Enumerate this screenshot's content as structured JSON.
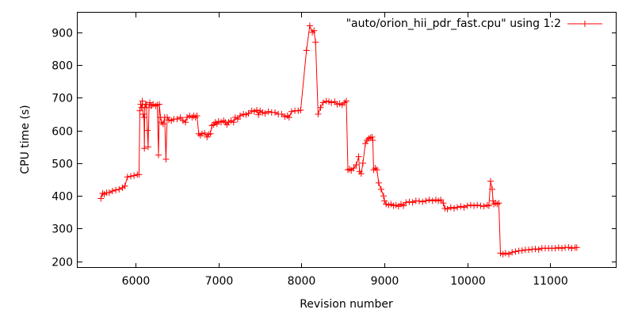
{
  "chart_data": {
    "type": "line",
    "title": "",
    "xlabel": "Revision number",
    "ylabel": "CPU time (s)",
    "xlim": [
      5300,
      11800
    ],
    "ylim": [
      180,
      960
    ],
    "xticks": [
      6000,
      7000,
      8000,
      9000,
      10000,
      11000
    ],
    "yticks": [
      200,
      300,
      400,
      500,
      600,
      700,
      800,
      900
    ],
    "grid": false,
    "legend_position": "top-right",
    "series_color": "#ff0000",
    "marker": "plus",
    "series": [
      {
        "name": "\"auto/orion_hii_pdr_fast.cpu\" using 1:2",
        "points": [
          [
            5580,
            392
          ],
          [
            5600,
            408
          ],
          [
            5620,
            405
          ],
          [
            5650,
            410
          ],
          [
            5680,
            410
          ],
          [
            5720,
            415
          ],
          [
            5760,
            418
          ],
          [
            5800,
            420
          ],
          [
            5840,
            425
          ],
          [
            5870,
            430
          ],
          [
            5900,
            458
          ],
          [
            5940,
            460
          ],
          [
            5980,
            462
          ],
          [
            6020,
            465
          ],
          [
            6040,
            465
          ],
          [
            6050,
            660
          ],
          [
            6060,
            680
          ],
          [
            6070,
            670
          ],
          [
            6080,
            690
          ],
          [
            6090,
            650
          ],
          [
            6100,
            640
          ],
          [
            6105,
            545
          ],
          [
            6110,
            670
          ],
          [
            6120,
            680
          ],
          [
            6130,
            680
          ],
          [
            6140,
            600
          ],
          [
            6150,
            550
          ],
          [
            6160,
            670
          ],
          [
            6170,
            685
          ],
          [
            6190,
            675
          ],
          [
            6210,
            680
          ],
          [
            6240,
            675
          ],
          [
            6260,
            678
          ],
          [
            6275,
            525
          ],
          [
            6285,
            680
          ],
          [
            6300,
            640
          ],
          [
            6310,
            625
          ],
          [
            6330,
            620
          ],
          [
            6350,
            640
          ],
          [
            6365,
            512
          ],
          [
            6380,
            640
          ],
          [
            6400,
            632
          ],
          [
            6430,
            630
          ],
          [
            6460,
            635
          ],
          [
            6500,
            635
          ],
          [
            6540,
            640
          ],
          [
            6570,
            630
          ],
          [
            6600,
            625
          ],
          [
            6620,
            640
          ],
          [
            6650,
            645
          ],
          [
            6680,
            640
          ],
          [
            6700,
            645
          ],
          [
            6720,
            640
          ],
          [
            6740,
            645
          ],
          [
            6760,
            590
          ],
          [
            6780,
            585
          ],
          [
            6800,
            590
          ],
          [
            6830,
            592
          ],
          [
            6860,
            580
          ],
          [
            6880,
            588
          ],
          [
            6900,
            590
          ],
          [
            6920,
            615
          ],
          [
            6940,
            618
          ],
          [
            6960,
            625
          ],
          [
            6980,
            620
          ],
          [
            7000,
            628
          ],
          [
            7030,
            625
          ],
          [
            7060,
            630
          ],
          [
            7080,
            625
          ],
          [
            7100,
            618
          ],
          [
            7120,
            625
          ],
          [
            7150,
            630
          ],
          [
            7180,
            625
          ],
          [
            7200,
            640
          ],
          [
            7230,
            635
          ],
          [
            7260,
            645
          ],
          [
            7300,
            650
          ],
          [
            7330,
            648
          ],
          [
            7360,
            652
          ],
          [
            7400,
            660
          ],
          [
            7430,
            658
          ],
          [
            7460,
            662
          ],
          [
            7480,
            648
          ],
          [
            7500,
            660
          ],
          [
            7530,
            655
          ],
          [
            7560,
            652
          ],
          [
            7600,
            658
          ],
          [
            7640,
            655
          ],
          [
            7680,
            655
          ],
          [
            7720,
            650
          ],
          [
            7760,
            650
          ],
          [
            7800,
            642
          ],
          [
            7830,
            645
          ],
          [
            7850,
            640
          ],
          [
            7880,
            658
          ],
          [
            7920,
            660
          ],
          [
            7960,
            660
          ],
          [
            7990,
            662
          ],
          [
            8060,
            845
          ],
          [
            8100,
            920
          ],
          [
            8130,
            900
          ],
          [
            8150,
            905
          ],
          [
            8170,
            870
          ],
          [
            8200,
            650
          ],
          [
            8230,
            670
          ],
          [
            8260,
            685
          ],
          [
            8300,
            690
          ],
          [
            8330,
            688
          ],
          [
            8360,
            685
          ],
          [
            8400,
            688
          ],
          [
            8430,
            680
          ],
          [
            8460,
            682
          ],
          [
            8490,
            678
          ],
          [
            8520,
            685
          ],
          [
            8540,
            690
          ],
          [
            8560,
            480
          ],
          [
            8580,
            482
          ],
          [
            8600,
            478
          ],
          [
            8630,
            485
          ],
          [
            8660,
            495
          ],
          [
            8690,
            520
          ],
          [
            8700,
            475
          ],
          [
            8720,
            468
          ],
          [
            8740,
            500
          ],
          [
            8770,
            560
          ],
          [
            8790,
            570
          ],
          [
            8810,
            575
          ],
          [
            8830,
            578
          ],
          [
            8850,
            580
          ],
          [
            8860,
            570
          ],
          [
            8870,
            480
          ],
          [
            8890,
            485
          ],
          [
            8910,
            480
          ],
          [
            8930,
            440
          ],
          [
            8960,
            420
          ],
          [
            8990,
            400
          ],
          [
            9000,
            385
          ],
          [
            9020,
            375
          ],
          [
            9050,
            372
          ],
          [
            9080,
            375
          ],
          [
            9110,
            370
          ],
          [
            9140,
            372
          ],
          [
            9170,
            368
          ],
          [
            9200,
            375
          ],
          [
            9230,
            370
          ],
          [
            9260,
            380
          ],
          [
            9300,
            382
          ],
          [
            9340,
            380
          ],
          [
            9380,
            385
          ],
          [
            9420,
            384
          ],
          [
            9460,
            382
          ],
          [
            9500,
            385
          ],
          [
            9540,
            388
          ],
          [
            9580,
            385
          ],
          [
            9620,
            388
          ],
          [
            9650,
            385
          ],
          [
            9680,
            388
          ],
          [
            9710,
            378
          ],
          [
            9730,
            362
          ],
          [
            9760,
            360
          ],
          [
            9800,
            365
          ],
          [
            9840,
            362
          ],
          [
            9880,
            365
          ],
          [
            9920,
            368
          ],
          [
            9960,
            365
          ],
          [
            10000,
            370
          ],
          [
            10040,
            372
          ],
          [
            10080,
            370
          ],
          [
            10120,
            372
          ],
          [
            10160,
            370
          ],
          [
            10200,
            368
          ],
          [
            10240,
            372
          ],
          [
            10260,
            370
          ],
          [
            10280,
            445
          ],
          [
            10300,
            420
          ],
          [
            10310,
            385
          ],
          [
            10320,
            375
          ],
          [
            10340,
            378
          ],
          [
            10360,
            375
          ],
          [
            10380,
            378
          ],
          [
            10400,
            225
          ],
          [
            10430,
            222
          ],
          [
            10460,
            225
          ],
          [
            10500,
            222
          ],
          [
            10540,
            228
          ],
          [
            10580,
            230
          ],
          [
            10620,
            232
          ],
          [
            10660,
            233
          ],
          [
            10700,
            235
          ],
          [
            10740,
            235
          ],
          [
            10780,
            237
          ],
          [
            10820,
            238
          ],
          [
            10860,
            236
          ],
          [
            10900,
            240
          ],
          [
            10940,
            240
          ],
          [
            10980,
            240
          ],
          [
            11020,
            240
          ],
          [
            11060,
            240
          ],
          [
            11100,
            242
          ],
          [
            11140,
            240
          ],
          [
            11180,
            242
          ],
          [
            11220,
            243
          ],
          [
            11260,
            240
          ],
          [
            11300,
            242
          ],
          [
            11320,
            242
          ]
        ]
      }
    ]
  }
}
